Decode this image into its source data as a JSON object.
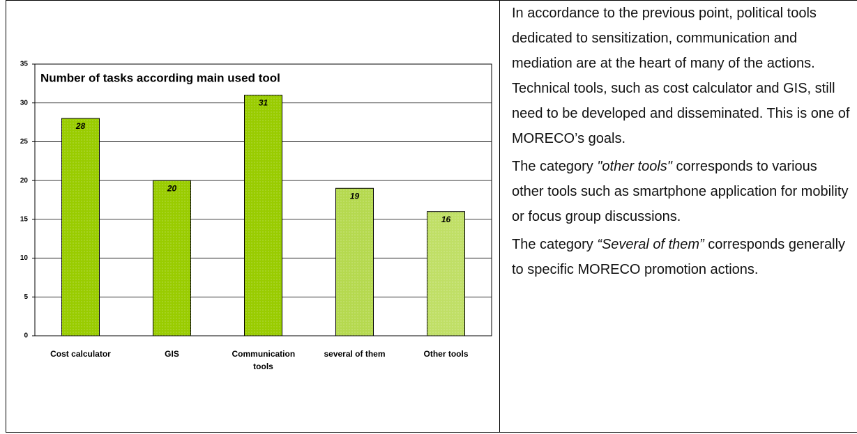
{
  "chart_data": {
    "type": "bar",
    "title": "Number of tasks according main used tool",
    "categories": [
      "Cost calculator",
      "GIS",
      "Communication tools",
      "several of them",
      "Other tools"
    ],
    "values": [
      28,
      20,
      31,
      19,
      16
    ],
    "colors": [
      "#99cc00",
      "#99cc00",
      "#99cc00",
      "#b5d94f",
      "#c0df66"
    ],
    "ylim": [
      0,
      35
    ],
    "yticks": [
      0,
      5,
      10,
      15,
      20,
      25,
      30,
      35
    ],
    "grid": true
  },
  "text": {
    "paragraphs": [
      {
        "before": "In accordance to the previous point, political tools dedicated to sensitization, communication and mediation are at the heart of many of the actions. Technical tools, such as cost calculator and GIS, still need to be developed and disseminated. This is one of MORECO’s goals."
      },
      {
        "before": "The category ",
        "emphasis": "\"other tools\"",
        "after": " corresponds to various other tools such as smartphone application for mobility or focus group discussions."
      },
      {
        "before": "The category ",
        "emphasis": "“Several of them”",
        "after": " corresponds generally to specific MORECO promotion actions."
      }
    ]
  }
}
